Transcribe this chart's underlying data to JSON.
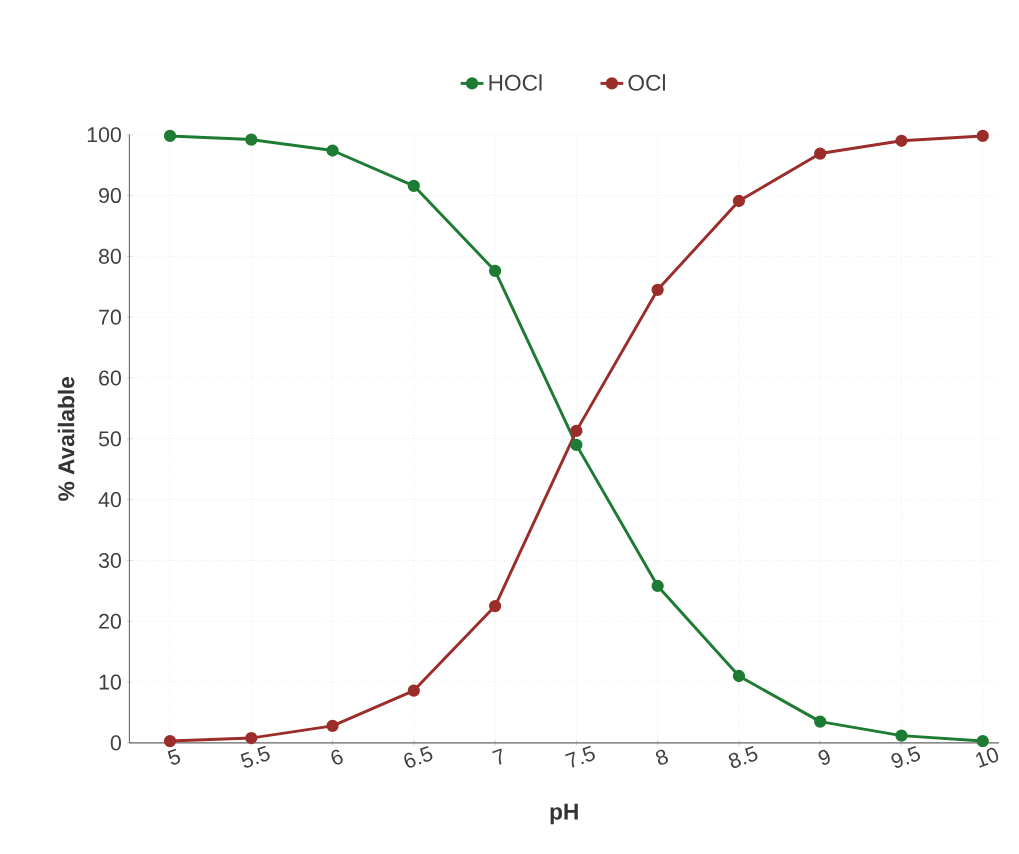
{
  "chart_data": {
    "type": "line",
    "xlabel": "pH",
    "ylabel": "% Available",
    "categories": [
      "5",
      "5.5",
      "6",
      "6.5",
      "7",
      "7.5",
      "8",
      "8.5",
      "9",
      "9.5",
      "10"
    ],
    "series": [
      {
        "name": "HOCl",
        "color": "#1e7b34",
        "values": [
          99.8,
          99.2,
          97.4,
          91.6,
          77.6,
          49.0,
          25.8,
          11.0,
          3.5,
          1.2,
          0.3
        ]
      },
      {
        "name": "OCl",
        "color": "#9b2d2a",
        "values": [
          0.3,
          0.8,
          2.8,
          8.6,
          22.5,
          51.3,
          74.5,
          89.1,
          96.9,
          99.0,
          99.8
        ]
      }
    ],
    "ylim": [
      0,
      100
    ],
    "yticks": [
      0,
      10,
      20,
      30,
      40,
      50,
      60,
      70,
      80,
      90,
      100
    ],
    "grid": true,
    "legend": "top",
    "marker": "circle",
    "line_style": "solid"
  }
}
